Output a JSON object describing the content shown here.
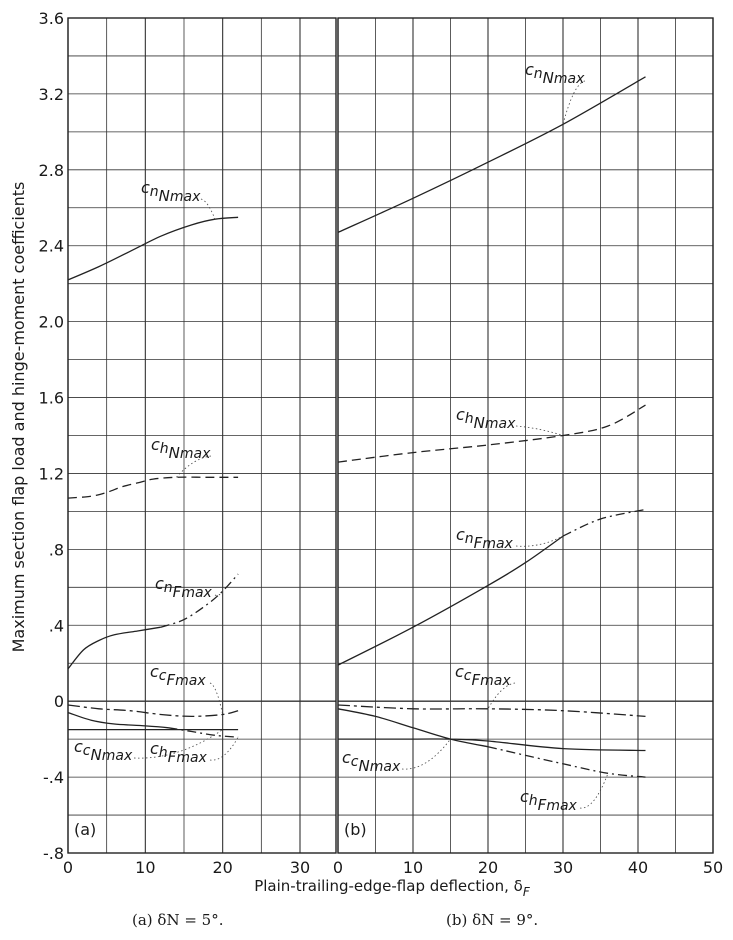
{
  "ylabel": "Maximum section flap load and hinge-moment coefficients",
  "xlabel": "Plain-trailing-edge-flap deflection, δ",
  "xlabel_sub": "F",
  "captions": {
    "a": "(a)  δN = 5°.",
    "b": "(b)  δN = 9°."
  },
  "panel_tags": {
    "a": "(a)",
    "b": "(b)"
  },
  "yticks": [
    "3.6",
    "3.2",
    "2.8",
    "2.4",
    "2.0",
    "1.6",
    "1.2",
    ".8",
    ".4",
    "0",
    "-.4",
    "-.8"
  ],
  "xticks_a": [
    "0",
    "10",
    "20",
    "30"
  ],
  "xticks_b": [
    "0",
    "10",
    "20",
    "30",
    "40",
    "50"
  ],
  "chart_data": [
    {
      "type": "line",
      "panel": "a",
      "title": "(a)",
      "xlabel": "Plain-trailing-edge-flap deflection, δF",
      "ylabel": "Maximum section flap load and hinge-moment coefficients",
      "xlim": [
        0,
        35
      ],
      "ylim": [
        -0.8,
        3.6
      ],
      "grid": true,
      "series": [
        {
          "name": "cnNmax",
          "x": [
            0,
            4,
            8,
            12,
            16,
            19,
            22
          ],
          "y": [
            2.22,
            2.29,
            2.37,
            2.45,
            2.51,
            2.54,
            2.55
          ]
        },
        {
          "name": "chNmax",
          "x": [
            0,
            3,
            5,
            7,
            9,
            11,
            14,
            18,
            22
          ],
          "y": [
            1.07,
            1.08,
            1.1,
            1.13,
            1.15,
            1.17,
            1.18,
            1.18,
            1.18
          ]
        },
        {
          "name": "cnFmax",
          "x": [
            0,
            2,
            4,
            6,
            9,
            12,
            15,
            18,
            20,
            22
          ],
          "y": [
            0.17,
            0.27,
            0.32,
            0.35,
            0.37,
            0.39,
            0.43,
            0.51,
            0.58,
            0.67
          ]
        },
        {
          "name": "ccFmax",
          "x": [
            0,
            4,
            8,
            12,
            16,
            20,
            22
          ],
          "y": [
            -0.02,
            -0.04,
            -0.05,
            -0.07,
            -0.08,
            -0.07,
            -0.05
          ]
        },
        {
          "name": "ccNmax",
          "x": [
            0,
            5,
            10,
            15,
            20,
            22
          ],
          "y": [
            -0.15,
            -0.15,
            -0.15,
            -0.15,
            -0.15,
            -0.15
          ]
        },
        {
          "name": "chFmax",
          "x": [
            0,
            3,
            6,
            10,
            13,
            16,
            19,
            22
          ],
          "y": [
            -0.06,
            -0.1,
            -0.12,
            -0.13,
            -0.14,
            -0.16,
            -0.18,
            -0.19
          ]
        }
      ]
    },
    {
      "type": "line",
      "panel": "b",
      "title": "(b)",
      "xlabel": "Plain-trailing-edge-flap deflection, δF",
      "ylabel": "Maximum section flap load and hinge-moment coefficients",
      "xlim": [
        0,
        50
      ],
      "ylim": [
        -0.8,
        3.6
      ],
      "grid": true,
      "series": [
        {
          "name": "cnNmax",
          "x": [
            0,
            10,
            20,
            30,
            41
          ],
          "y": [
            2.47,
            2.65,
            2.84,
            3.04,
            3.29
          ]
        },
        {
          "name": "chNmax",
          "x": [
            0,
            10,
            20,
            30,
            36,
            41
          ],
          "y": [
            1.26,
            1.31,
            1.35,
            1.4,
            1.45,
            1.56
          ]
        },
        {
          "name": "cnFmax",
          "x": [
            0,
            10,
            20,
            25,
            30,
            35,
            41
          ],
          "y": [
            0.19,
            0.39,
            0.61,
            0.73,
            0.87,
            0.96,
            1.01
          ]
        },
        {
          "name": "ccFmax",
          "x": [
            0,
            10,
            20,
            30,
            41
          ],
          "y": [
            -0.02,
            -0.04,
            -0.04,
            -0.05,
            -0.08
          ]
        },
        {
          "name": "ccNmax",
          "x": [
            0,
            10,
            15,
            20,
            30,
            41
          ],
          "y": [
            -0.2,
            -0.2,
            -0.2,
            -0.21,
            -0.25,
            -0.26
          ]
        },
        {
          "name": "chFmax",
          "x": [
            0,
            5,
            10,
            15,
            20,
            30,
            36,
            41
          ],
          "y": [
            -0.04,
            -0.08,
            -0.14,
            -0.2,
            -0.24,
            -0.33,
            -0.38,
            -0.4
          ]
        }
      ]
    }
  ],
  "series_labels": [
    {
      "panel": "a",
      "series": "cnNmax",
      "base": "c",
      "sub": "n",
      "subsub": "N",
      "tail": "max"
    },
    {
      "panel": "a",
      "series": "chNmax",
      "base": "c",
      "sub": "h",
      "subsub": "N",
      "tail": "max"
    },
    {
      "panel": "a",
      "series": "cnFmax",
      "base": "c",
      "sub": "n",
      "subsub": "F",
      "tail": "max"
    },
    {
      "panel": "a",
      "series": "ccFmax",
      "base": "c",
      "sub": "c",
      "subsub": "F",
      "tail": "max"
    },
    {
      "panel": "a",
      "series": "ccNmax",
      "base": "c",
      "sub": "c",
      "subsub": "N",
      "tail": "max"
    },
    {
      "panel": "a",
      "series": "chFmax",
      "base": "c",
      "sub": "h",
      "subsub": "F",
      "tail": "max"
    },
    {
      "panel": "b",
      "series": "cnNmax",
      "base": "c",
      "sub": "n",
      "subsub": "N",
      "tail": "max"
    },
    {
      "panel": "b",
      "series": "chNmax",
      "base": "c",
      "sub": "h",
      "subsub": "N",
      "tail": "max"
    },
    {
      "panel": "b",
      "series": "cnFmax",
      "base": "c",
      "sub": "n",
      "subsub": "F",
      "tail": "max"
    },
    {
      "panel": "b",
      "series": "ccFmax",
      "base": "c",
      "sub": "c",
      "subsub": "F",
      "tail": "max"
    },
    {
      "panel": "b",
      "series": "ccNmax",
      "base": "c",
      "sub": "c",
      "subsub": "N",
      "tail": "max"
    },
    {
      "panel": "b",
      "series": "chFmax",
      "base": "c",
      "sub": "h",
      "subsub": "F",
      "tail": "max"
    }
  ]
}
